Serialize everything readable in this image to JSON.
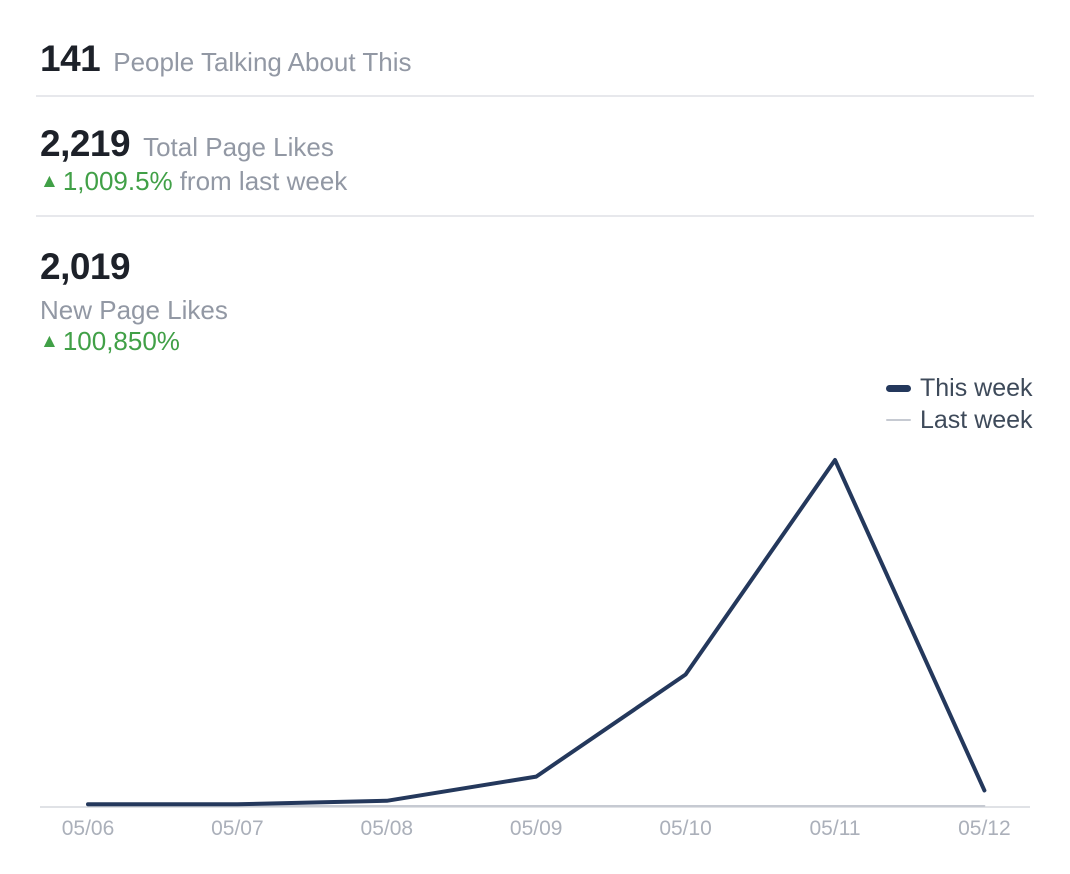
{
  "stats": [
    {
      "id": "people-talking-about-this",
      "value": "141",
      "label": "People Talking About This"
    },
    {
      "id": "total-page-likes",
      "value": "2,219",
      "label": "Total Page Likes",
      "delta": {
        "arrow": "▲",
        "direction": "up",
        "percent": "1,009.5%",
        "suffix": "from last week"
      }
    },
    {
      "id": "new-page-likes",
      "value": "2,019",
      "label": "New Page Likes",
      "delta": {
        "arrow": "▲",
        "direction": "up",
        "percent": "100,850%"
      }
    }
  ],
  "chart_data": {
    "type": "line",
    "title": "",
    "xlabel": "",
    "ylabel": "",
    "categories": [
      "05/06",
      "05/07",
      "05/08",
      "05/09",
      "05/10",
      "05/11",
      "05/12"
    ],
    "series": [
      {
        "name": "This week",
        "color": "#24385c",
        "stroke_width": 4,
        "values": [
          5,
          5,
          15,
          85,
          380,
          1000,
          45
        ]
      },
      {
        "name": "Last week",
        "color": "#c6cad2",
        "stroke_width": 2,
        "values": [
          0,
          0,
          0,
          0,
          0,
          0,
          0
        ]
      }
    ],
    "ylim": [
      0,
      1080
    ],
    "grid": false,
    "y_axis_shown": false,
    "legend_position": "top-right",
    "note": "Daily new page likes; no y-axis labels are shown, so values are relative units estimated from line heights with the 05/11 peak normalized to 1000."
  },
  "colors": {
    "value_text": "#1d2129",
    "label_text": "#9298a4",
    "positive_green": "#41a047",
    "this_week_line": "#24385c",
    "last_week_line": "#c6cad2",
    "axis_line": "#e0e2e6",
    "divider": "#e7e8ec",
    "tick_text": "#abb0ba",
    "legend_text": "#3e4a5a"
  }
}
